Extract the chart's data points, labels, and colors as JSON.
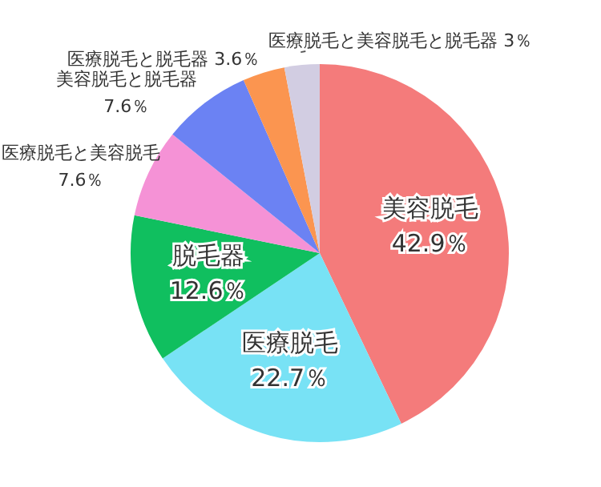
{
  "chart_data": {
    "type": "pie",
    "categories": [
      "美容脱毛",
      "医療脱毛",
      "脱毛器",
      "医療脱毛と美容脱毛",
      "美容脱毛と脱毛器",
      "医療脱毛と脱毛器",
      "医療脱毛と美容脱毛と脱毛器"
    ],
    "values": [
      42.9,
      22.7,
      12.6,
      7.6,
      7.6,
      3.6,
      3
    ],
    "value_labels": [
      "42.9％",
      "22.7％",
      "12.6％",
      "7.6％",
      "7.6％",
      "3.6％",
      "3％"
    ],
    "colors": [
      "#f47b7b",
      "#78e2f5",
      "#10bf5f",
      "#f592d6",
      "#6b82f3",
      "#fb9550",
      "#d2cde2"
    ],
    "legend": false
  }
}
